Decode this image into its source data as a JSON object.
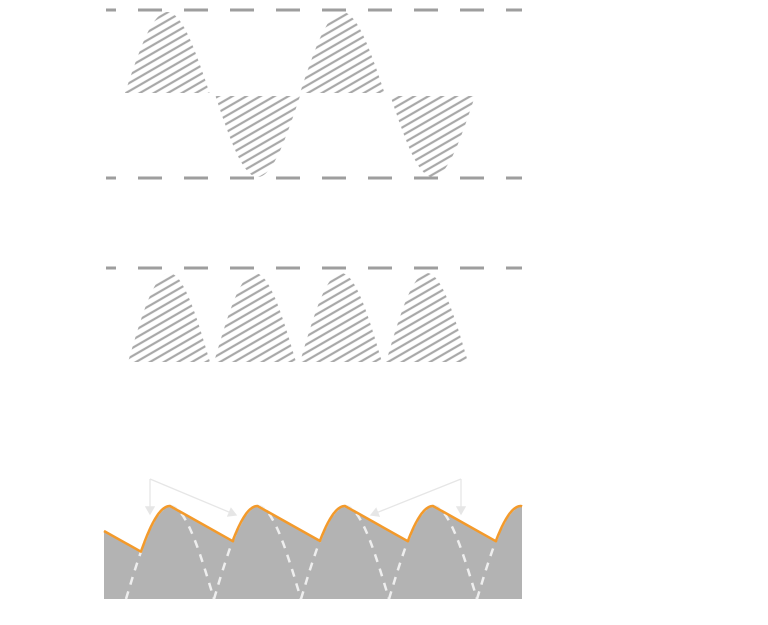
{
  "colors": {
    "hatch": "#a8a8a8",
    "reference_line": "#9e9e9e",
    "filled_area": "#b3b3b3",
    "envelope": "#f39a2b",
    "dashed_wave": "#eeeeee",
    "arrow": "#e6e6e6"
  }
}
